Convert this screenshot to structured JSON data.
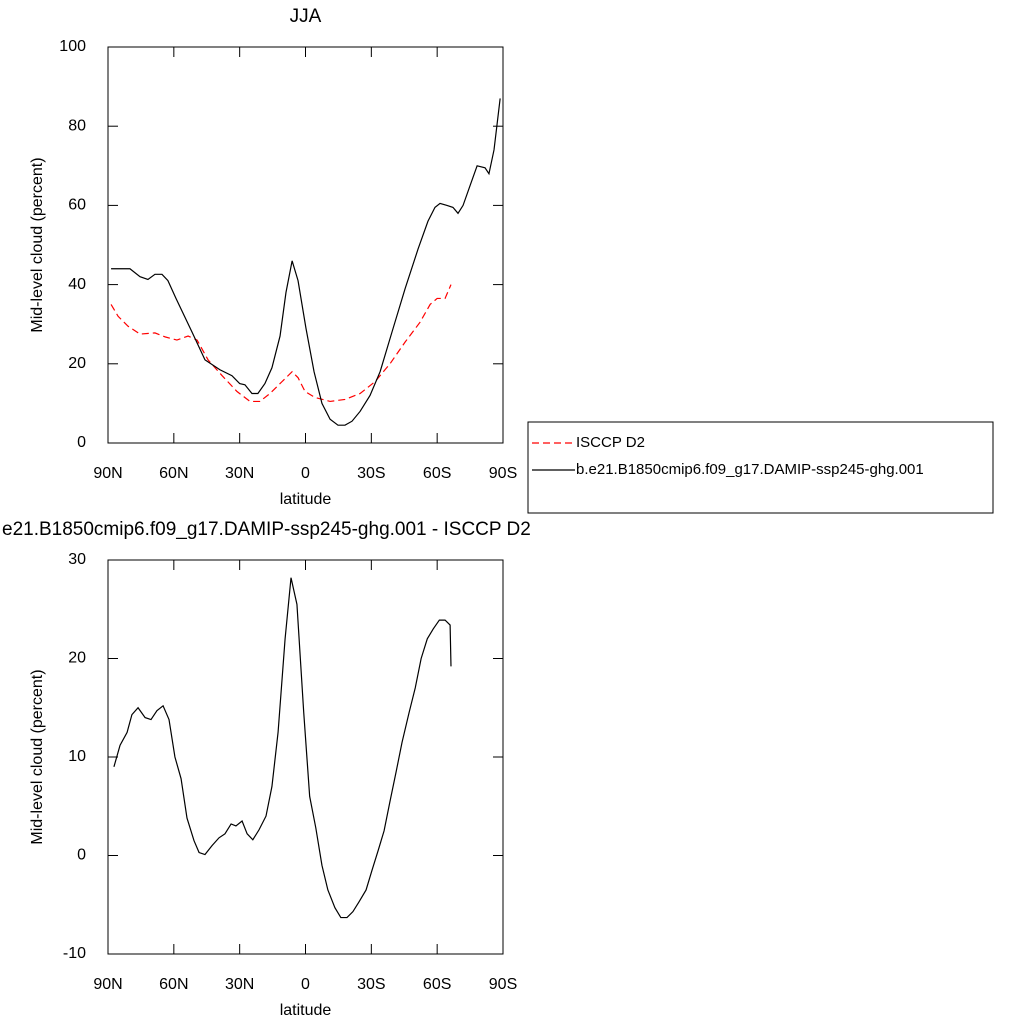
{
  "chart_data": [
    {
      "type": "line",
      "title": "JJA",
      "xlabel": "latitude",
      "ylabel": "Mid-level cloud (percent)",
      "xlim": [
        90,
        -90
      ],
      "ylim": [
        0,
        100
      ],
      "xticks": [
        {
          "value": 90,
          "label": "90N"
        },
        {
          "value": 60,
          "label": "60N"
        },
        {
          "value": 30,
          "label": "30N"
        },
        0,
        {
          "value": -30,
          "label": "30S"
        },
        {
          "value": -60,
          "label": "60S"
        },
        {
          "value": -90,
          "label": "90S"
        }
      ],
      "yticks": [
        0,
        20,
        40,
        60,
        80,
        100
      ],
      "legend": "right",
      "series": [
        {
          "name": "ISCCP D2",
          "color": "#ff0000",
          "line_style": "dashed",
          "x": [
            88.6,
            85.4,
            80.9,
            75.4,
            68.6,
            64,
            58.6,
            53.5,
            49.4,
            44.4,
            38,
            31.2,
            25.3,
            20.8,
            16.2,
            10.7,
            6.1,
            3.4,
            0.2,
            -4.3,
            -11.2,
            -18,
            -24.9,
            -31.7,
            -38.5,
            -45.4,
            -52.2,
            -56.8,
            -60,
            -63.6,
            -66.3
          ],
          "values": [
            35,
            32,
            29.5,
            27.5,
            27.8,
            26.8,
            26,
            27,
            26,
            21,
            17,
            13,
            10.5,
            10.5,
            12.5,
            15.5,
            18,
            16.5,
            13,
            11.5,
            10.5,
            11,
            12.5,
            15.5,
            20,
            25.5,
            30.5,
            35,
            36.5,
            36.5,
            40
          ]
        },
        {
          "name": "b.e21.B1850cmip6.f09_g17.DAMIP-ssp245-ghg.001",
          "color": "#000000",
          "line_style": "solid",
          "x": [
            88.6,
            80,
            75.4,
            71.8,
            68.6,
            65.4,
            62.7,
            59,
            51.7,
            45.8,
            39,
            33.5,
            30,
            27.6,
            24.4,
            21.7,
            18.5,
            15.3,
            11.6,
            8.9,
            6.1,
            3.4,
            -0.2,
            -3.9,
            -7.5,
            -11.2,
            -14.8,
            -18,
            -21.2,
            -24.9,
            -29.4,
            -34,
            -39.4,
            -45.4,
            -51.3,
            -55.8,
            -59,
            -61.3,
            -64.5,
            -67.2,
            -69.5,
            -71.8,
            -75,
            -78.2,
            -81.8,
            -83.6,
            -85.9,
            -88.7
          ],
          "values": [
            44,
            44,
            42,
            41.3,
            42.6,
            42.6,
            41,
            36.5,
            28,
            21,
            18.5,
            17,
            15,
            14.7,
            12.5,
            12.5,
            15,
            19,
            27,
            38,
            46,
            41,
            29,
            18,
            10,
            6,
            4.5,
            4.5,
            5.5,
            8,
            12,
            18,
            28,
            39,
            49,
            56,
            59.5,
            60.5,
            60,
            59.5,
            58,
            60,
            65,
            70,
            69.5,
            68,
            74,
            87
          ]
        }
      ]
    },
    {
      "type": "line",
      "title": "e21.B1850cmip6.f09_g17.DAMIP-ssp245-ghg.001 - ISCCP D2",
      "xlabel": "latitude",
      "ylabel": "Mid-level cloud (percent)",
      "xlim": [
        90,
        -90
      ],
      "ylim": [
        -10,
        30
      ],
      "xticks": [
        {
          "value": 90,
          "label": "90N"
        },
        {
          "value": 60,
          "label": "60N"
        },
        {
          "value": 30,
          "label": "30N"
        },
        0,
        {
          "value": -30,
          "label": "30S"
        },
        {
          "value": -60,
          "label": "60S"
        },
        {
          "value": -90,
          "label": "90S"
        }
      ],
      "yticks": [
        -10,
        0,
        10,
        20,
        30
      ],
      "series": [
        {
          "color": "#000000",
          "line_style": "solid",
          "x": [
            87.3,
            84.5,
            81.3,
            79.1,
            76.3,
            73.1,
            70.4,
            67.7,
            64.9,
            62.2,
            59.5,
            56.7,
            54,
            50.8,
            48.5,
            45.8,
            42.6,
            39.4,
            36.7,
            33.9,
            31.7,
            28.9,
            26.6,
            24,
            21.2,
            18,
            15.3,
            12.5,
            9.3,
            6.6,
            3.9,
            0.8,
            -1.9,
            -4.7,
            -7.5,
            -10.2,
            -13.4,
            -16.1,
            -18.9,
            -21.6,
            -24.4,
            -27.6,
            -30.3,
            -33.1,
            -35.8,
            -38.5,
            -41.3,
            -44,
            -47.2,
            -50,
            -52.7,
            -55.5,
            -58.2,
            -61,
            -63.6,
            -65.9,
            -66.3
          ],
          "values": [
            9,
            11.2,
            12.5,
            14.3,
            15,
            14,
            13.8,
            14.7,
            15.2,
            13.8,
            10,
            7.8,
            3.8,
            1.5,
            0.3,
            0.1,
            1,
            1.8,
            2.2,
            3.2,
            3,
            3.5,
            2.2,
            1.6,
            2.6,
            4,
            7,
            12.5,
            22,
            28.2,
            25.5,
            14.5,
            6,
            2.8,
            -1,
            -3.5,
            -5.3,
            -6.3,
            -6.3,
            -5.7,
            -4.7,
            -3.5,
            -1.5,
            0.5,
            2.5,
            5.5,
            8.5,
            11.5,
            14.5,
            17,
            20,
            22,
            23,
            23.9,
            23.9,
            23.4,
            19.2
          ]
        }
      ]
    }
  ]
}
